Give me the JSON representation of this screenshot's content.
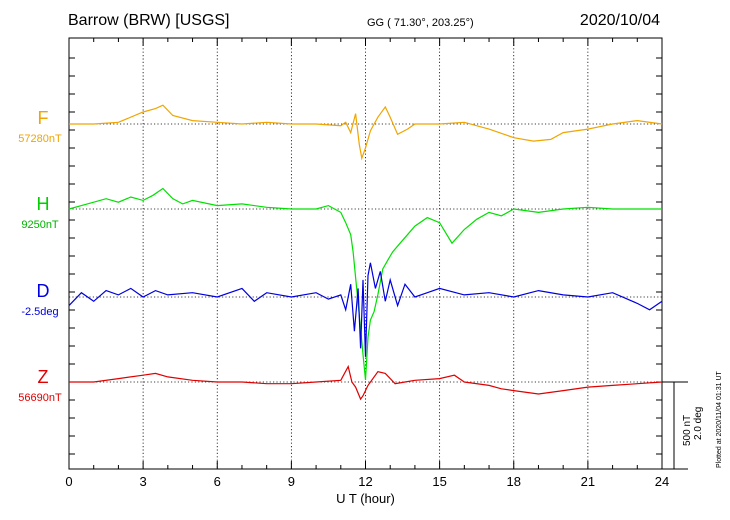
{
  "header": {
    "station": "Barrow (BRW)  [USGS]",
    "coords": "GG ( 71.30°, 203.25°)",
    "date": "2020/10/04"
  },
  "footer": {
    "plotted": "Plotted at 2020/11/04 01:31  UT",
    "scale_nt": "500 nT",
    "scale_deg": "2.0 deg"
  },
  "chart_data": {
    "type": "line",
    "title": "Barrow (BRW)  [USGS]",
    "xlabel": "U T (hour)",
    "xlim": [
      0,
      24
    ],
    "xticks": [
      "0",
      "3",
      "6",
      "9",
      "12",
      "15",
      "18",
      "21",
      "24"
    ],
    "grid": true,
    "units_per_division": {
      "nT": 500,
      "deg": 2.0
    },
    "series": [
      {
        "name": "F",
        "baseline_label": "57280nT",
        "color": "#f0a500",
        "x": [
          0,
          1,
          2,
          3,
          3.5,
          3.8,
          4.2,
          5,
          6,
          7,
          8,
          9,
          10,
          11,
          11.2,
          11.4,
          11.6,
          11.75,
          11.85,
          12.0,
          12.2,
          12.5,
          12.8,
          13.0,
          13.3,
          13.7,
          14,
          15,
          16,
          17,
          18,
          18.8,
          19.5,
          20,
          21,
          22,
          23,
          24
        ],
        "values": [
          0,
          0,
          10,
          70,
          90,
          110,
          50,
          20,
          10,
          0,
          10,
          0,
          0,
          -10,
          10,
          -50,
          60,
          -120,
          -200,
          -140,
          -40,
          40,
          100,
          40,
          -60,
          -30,
          0,
          0,
          10,
          -30,
          -80,
          -100,
          -90,
          -50,
          -30,
          0,
          20,
          0
        ]
      },
      {
        "name": "H",
        "baseline_label": "9250nT",
        "color": "#00e000",
        "x": [
          0,
          0.5,
          1,
          1.5,
          2,
          2.5,
          3,
          3.4,
          3.8,
          4.2,
          4.6,
          5,
          6,
          7,
          8,
          9,
          10,
          10.5,
          11,
          11.2,
          11.4,
          11.5,
          11.6,
          11.7,
          11.8,
          11.9,
          12.0,
          12.1,
          12.2,
          12.35,
          12.5,
          12.7,
          12.9,
          13.1,
          13.4,
          13.7,
          14,
          14.5,
          15,
          15.5,
          16,
          16.5,
          17,
          17.5,
          18,
          19,
          20,
          21,
          22,
          23,
          24
        ],
        "values": [
          0,
          20,
          40,
          60,
          40,
          70,
          50,
          80,
          120,
          60,
          30,
          50,
          20,
          30,
          10,
          0,
          0,
          20,
          -20,
          -80,
          -150,
          -250,
          -400,
          -550,
          -700,
          -850,
          -1000,
          -750,
          -650,
          -600,
          -500,
          -350,
          -300,
          -250,
          -200,
          -150,
          -100,
          -50,
          -80,
          -200,
          -120,
          -60,
          -20,
          -40,
          0,
          -20,
          0,
          10,
          0,
          0,
          0
        ]
      },
      {
        "name": "D",
        "baseline_label": "-2.5deg",
        "color": "#0000e0",
        "x": [
          0,
          0.5,
          1,
          1.5,
          2,
          2.5,
          3,
          3.5,
          4,
          5,
          6,
          7,
          7.5,
          8,
          9,
          10,
          10.5,
          11,
          11.2,
          11.4,
          11.55,
          11.7,
          11.8,
          11.9,
          12.0,
          12.1,
          12.2,
          12.4,
          12.6,
          12.8,
          13.0,
          13.3,
          13.6,
          14,
          14.5,
          15,
          16,
          17,
          18,
          19,
          20,
          21,
          22,
          23,
          23.5,
          24
        ],
        "values": [
          -0.2,
          0.1,
          -0.1,
          0.15,
          0.05,
          0.2,
          0.0,
          0.15,
          0.05,
          0.1,
          0.0,
          0.2,
          -0.1,
          0.1,
          0.0,
          0.1,
          -0.05,
          0.05,
          -0.3,
          0.3,
          -0.8,
          0.2,
          -1.2,
          0.4,
          -1.4,
          0.5,
          0.8,
          0.2,
          0.6,
          -0.1,
          0.4,
          -0.2,
          0.3,
          0.0,
          0.1,
          0.2,
          0.05,
          0.1,
          0.0,
          0.15,
          0.05,
          0.0,
          0.1,
          -0.15,
          -0.3,
          -0.1
        ]
      },
      {
        "name": "Z",
        "baseline_label": "56690nT",
        "color": "#e00000",
        "x": [
          0,
          1,
          2,
          3,
          3.5,
          4,
          5,
          6,
          7,
          8,
          9,
          10,
          11,
          11.3,
          11.45,
          11.6,
          11.8,
          11.9,
          12.1,
          12.5,
          12.8,
          13.2,
          13.6,
          14,
          15,
          15.6,
          16,
          17,
          17.5,
          18,
          19,
          20,
          21,
          22,
          23,
          24
        ],
        "values": [
          0,
          0,
          20,
          40,
          50,
          30,
          10,
          0,
          0,
          -10,
          -10,
          0,
          10,
          90,
          0,
          -30,
          -100,
          -80,
          -20,
          60,
          50,
          -10,
          0,
          10,
          20,
          40,
          0,
          -20,
          -40,
          -50,
          -70,
          -50,
          -30,
          -20,
          -10,
          0
        ]
      }
    ]
  }
}
